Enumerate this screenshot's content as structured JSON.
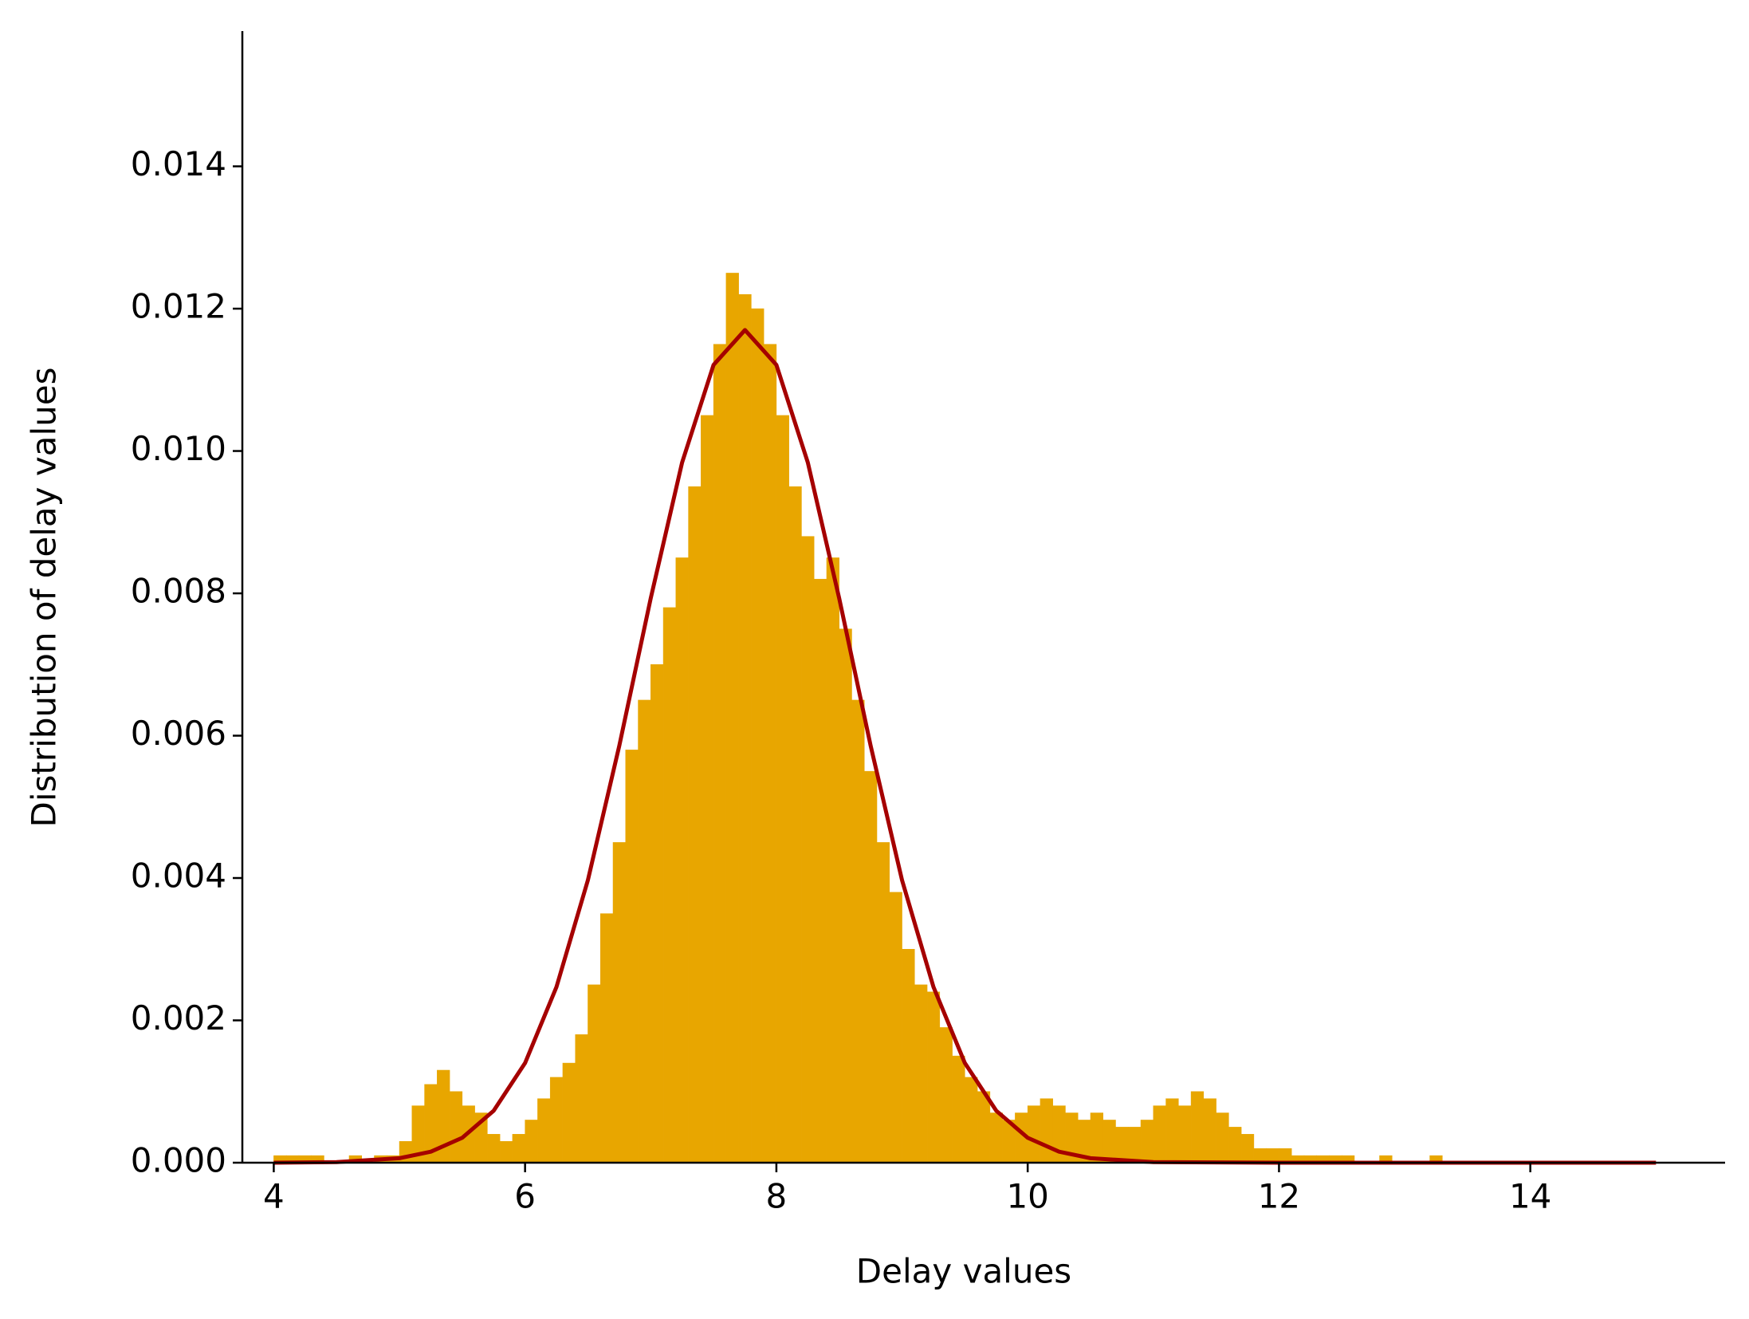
{
  "chart_data": {
    "type": "histogram",
    "xlabel": "Delay values",
    "ylabel": "Distribution of delay values",
    "color": "#e8a600",
    "bins": [
      4.0,
      4.1,
      4.2,
      4.3,
      4.4,
      4.5,
      4.6,
      4.7,
      4.8,
      4.9,
      5.0,
      5.1,
      5.2,
      5.3,
      5.4,
      5.5,
      5.6,
      5.7,
      5.8,
      5.9,
      6.0,
      6.1,
      6.2,
      6.3,
      6.4,
      6.5,
      6.6,
      6.7,
      6.8,
      6.9,
      7.0,
      7.1,
      7.2,
      7.3,
      7.4,
      7.5,
      7.6,
      7.7,
      7.8,
      7.9,
      8.0,
      8.1,
      8.2,
      8.3,
      8.4,
      8.5,
      8.6,
      8.7,
      8.8,
      8.9,
      9.0,
      9.1,
      9.2,
      9.3,
      9.4,
      9.5,
      9.6,
      9.7,
      9.8,
      9.9,
      10.0,
      10.1,
      10.2,
      10.3,
      10.4,
      10.5,
      10.6,
      10.7,
      10.8,
      10.9,
      11.0,
      11.1,
      11.2,
      11.3,
      11.4,
      11.5,
      11.6,
      11.7,
      11.8,
      11.9,
      12.0,
      12.1,
      12.2,
      12.3,
      12.4,
      12.5,
      12.6,
      12.7,
      12.8,
      12.9,
      13.0,
      13.1,
      13.2,
      13.3,
      13.4,
      13.5,
      13.6,
      13.7,
      13.8,
      13.9,
      14.0,
      14.1,
      14.2,
      14.3,
      14.4,
      14.5,
      14.6,
      14.7,
      14.8,
      14.9,
      15.0
    ],
    "values": [
      0.0001,
      0.0001,
      0.0001,
      0.0001,
      0,
      0,
      0.0001,
      0,
      0.0001,
      0.0001,
      0.0003,
      0.0008,
      0.0011,
      0.0013,
      0.001,
      0.0008,
      0.0007,
      0.0004,
      0.0003,
      0.0004,
      0.0006,
      0.0009,
      0.0012,
      0.0014,
      0.0018,
      0.0025,
      0.0035,
      0.0045,
      0.0058,
      0.0065,
      0.007,
      0.0078,
      0.0085,
      0.0095,
      0.0105,
      0.0115,
      0.0125,
      0.0122,
      0.012,
      0.0115,
      0.0105,
      0.0095,
      0.0088,
      0.0082,
      0.0085,
      0.0075,
      0.0065,
      0.0055,
      0.0045,
      0.0038,
      0.003,
      0.0025,
      0.0024,
      0.0019,
      0.0015,
      0.0012,
      0.001,
      0.0007,
      0.0006,
      0.0007,
      0.0008,
      0.0009,
      0.0008,
      0.0007,
      0.0006,
      0.0007,
      0.0006,
      0.0005,
      0.0005,
      0.0006,
      0.0008,
      0.0009,
      0.0008,
      0.001,
      0.0009,
      0.0007,
      0.0005,
      0.0004,
      0.0002,
      0.0002,
      0.0002,
      0.0001,
      0.0001,
      0.0001,
      0.0001,
      0.0001,
      0,
      0,
      0.0001,
      0,
      0,
      0,
      0.0001,
      0,
      0,
      0,
      0,
      0,
      0,
      0,
      0,
      0,
      0,
      0,
      0,
      0,
      0,
      0,
      0,
      0
    ],
    "curve": {
      "color": "#a50000",
      "x": [
        4,
        4.5,
        5,
        5.25,
        5.5,
        5.75,
        6,
        6.25,
        6.5,
        6.75,
        7,
        7.25,
        7.5,
        7.75,
        8,
        8.25,
        8.5,
        8.75,
        9,
        9.25,
        9.5,
        9.75,
        10,
        10.25,
        10.5,
        11,
        12,
        13,
        14,
        15
      ],
      "values": [
        0,
        7.8e-06,
        6.3e-05,
        0.000155,
        0.00035,
        0.00073,
        0.0014,
        0.00247,
        0.00397,
        0.00586,
        0.00793,
        0.00984,
        0.01121,
        0.0117,
        0.01121,
        0.00984,
        0.00793,
        0.00586,
        0.00397,
        0.00247,
        0.0014,
        0.00073,
        0.00035,
        0.000155,
        6.3e-05,
        7.8e-06,
        0,
        0,
        0,
        0
      ]
    },
    "xlim": [
      3.75,
      15.55
    ],
    "ylim": [
      0,
      0.0159
    ],
    "xticks": [
      4,
      6,
      8,
      10,
      12,
      14
    ],
    "yticks": [
      {
        "value": 0,
        "label": "0.000"
      },
      {
        "value": 0.002,
        "label": "0.002"
      },
      {
        "value": 0.004,
        "label": "0.004"
      },
      {
        "value": 0.006,
        "label": "0.006"
      },
      {
        "value": 0.008,
        "label": "0.008"
      },
      {
        "value": 0.01,
        "label": "0.010"
      },
      {
        "value": 0.012,
        "label": "0.012"
      },
      {
        "value": 0.014,
        "label": "0.014"
      }
    ]
  }
}
